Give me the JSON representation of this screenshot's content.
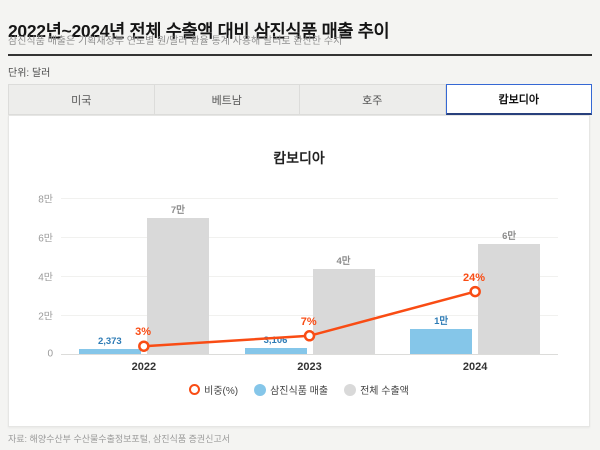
{
  "page": {
    "title": "2022년~2024년 전체 수출액 대비 삼진식품 매출 추이",
    "subtitle": "삼진식품 매출은 기획재정부 연도별 원/달러 환율 통계 사용해 달러로 환산한 수치",
    "unit_label": "단위: 달러",
    "source": "자료: 해양수산부 수산물수출정보포털, 삼진식품 증권신고서"
  },
  "tabs": [
    {
      "label": "미국",
      "selected": false
    },
    {
      "label": "베트남",
      "selected": false
    },
    {
      "label": "호주",
      "selected": false
    },
    {
      "label": "캄보디아",
      "selected": true
    }
  ],
  "colors": {
    "accent_blue_tab": "#3568d4",
    "bar_blue": "#85c6e9",
    "bar_blue_label": "#2d7bb5",
    "bar_gray": "#d9d9d9",
    "bar_gray_label": "#8c8c8c",
    "line_orange": "#f94c14",
    "page_bg": "#f4f4f2"
  },
  "chart_data": {
    "type": "bar",
    "title": "캄보디아",
    "categories": [
      "2022",
      "2023",
      "2024"
    ],
    "series": [
      {
        "name": "삼진식품 매출",
        "type": "bar",
        "color": "#85c6e9",
        "label_color": "#2d7bb5",
        "values": [
          2373,
          3106,
          13000
        ],
        "labels": [
          "2,373",
          "3,106",
          "1만"
        ]
      },
      {
        "name": "전체 수출액",
        "type": "bar",
        "color": "#d9d9d9",
        "label_color": "#8c8c8c",
        "values": [
          70000,
          43500,
          56500
        ],
        "labels": [
          "7만",
          "4만",
          "6만"
        ]
      },
      {
        "name": "비중(%)",
        "type": "line",
        "color": "#f94c14",
        "values": [
          3,
          7,
          24
        ],
        "labels": [
          "3%",
          "7%",
          "24%"
        ]
      }
    ],
    "y_ticks": [
      "8만",
      "6만",
      "4만",
      "2만",
      "0"
    ],
    "ylim": [
      0,
      80000
    ],
    "percent_ylim": [
      0,
      60
    ],
    "grid": true,
    "legend_position": "bottom",
    "legend": [
      {
        "label": "비중(%)",
        "marker": "ring",
        "color": "#f94c14"
      },
      {
        "label": "삼진식품 매출",
        "marker": "dot",
        "color": "#85c6e9"
      },
      {
        "label": "전체 수출액",
        "marker": "dot",
        "color": "#d9d9d9"
      }
    ]
  }
}
